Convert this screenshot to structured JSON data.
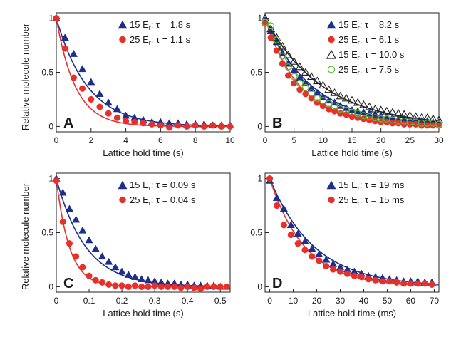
{
  "figure": {
    "ylabel": "Relative molecule number"
  },
  "colors": {
    "blue": "#1c2f8c",
    "red": "#e8302a",
    "green": "#67b534",
    "black": "#222222"
  },
  "chart_data": [
    {
      "type": "scatter",
      "panel_label": "A",
      "xlabel": "Lattice hold time (s)",
      "xlim": [
        0,
        10
      ],
      "ylim": [
        -0.05,
        1.05
      ],
      "xticks": [
        0,
        2,
        4,
        6,
        8,
        10
      ],
      "xtick_labels": [
        "0",
        "2",
        "4",
        "6",
        "8",
        "10"
      ],
      "yticks": [
        0,
        0.5,
        1
      ],
      "ytick_labels": [
        "0",
        "0.5",
        "1"
      ],
      "legend_position": "top-right",
      "series": [
        {
          "name": "15 E_r: τ = 1.8 s",
          "label_prefix": "15 E",
          "label_sub": "r",
          "label_suffix": ": τ = 1.8 s",
          "marker": "triangle",
          "filled": true,
          "color": "#1c2f8c",
          "x": [
            0,
            0.5,
            1,
            1.5,
            2,
            2.5,
            3,
            3.5,
            4,
            4.5,
            5,
            5.5,
            6,
            6.5,
            7,
            7.5,
            8,
            8.5,
            9,
            9.5,
            10
          ],
          "y": [
            1.0,
            0.82,
            0.67,
            0.53,
            0.41,
            0.3,
            0.22,
            0.16,
            0.1,
            0.08,
            0.06,
            0.04,
            0.04,
            0.03,
            0.03,
            0.02,
            0.02,
            0.02,
            0.01,
            0.01,
            0.01
          ],
          "fit_tau": 1.8
        },
        {
          "name": "25 E_r: τ = 1.1 s",
          "label_prefix": "25 E",
          "label_sub": "r",
          "label_suffix": ": τ = 1.1 s",
          "marker": "circle",
          "filled": true,
          "color": "#e8302a",
          "x": [
            0,
            0.5,
            1,
            1.5,
            2,
            2.5,
            3,
            3.5,
            4,
            4.5,
            5,
            5.5,
            6,
            6.5,
            7,
            7.5,
            8,
            8.5,
            9,
            9.5,
            10
          ],
          "y": [
            1.0,
            0.72,
            0.45,
            0.35,
            0.25,
            0.18,
            0.12,
            0.08,
            0.05,
            0.04,
            0.03,
            0.02,
            0.01,
            -0.01,
            0.01,
            0.0,
            0.01,
            0.0,
            0.01,
            0.0,
            0.0
          ],
          "fit_tau": 1.1
        }
      ]
    },
    {
      "type": "scatter",
      "panel_label": "B",
      "xlabel": "Lattice hold time (s)",
      "xlim": [
        0,
        30
      ],
      "ylim": [
        -0.05,
        1.05
      ],
      "xticks": [
        0,
        5,
        10,
        15,
        20,
        25,
        30
      ],
      "xtick_labels": [
        "0",
        "5",
        "10",
        "15",
        "20",
        "25",
        "30"
      ],
      "yticks": [
        0,
        0.5,
        1
      ],
      "ytick_labels": [
        "0",
        "0.5",
        "1"
      ],
      "legend_position": "top-right",
      "series": [
        {
          "name": "15 E_r: τ = 8.2 s",
          "label_prefix": "15 E",
          "label_sub": "r",
          "label_suffix": ": τ = 8.2 s",
          "marker": "triangle",
          "filled": true,
          "color": "#1c2f8c",
          "x": [
            0,
            1,
            2,
            3,
            4,
            5,
            6,
            7,
            8,
            9,
            10,
            11,
            12,
            13,
            14,
            15,
            16,
            17,
            18,
            19,
            20,
            21,
            22,
            23,
            24,
            25,
            26,
            27,
            28,
            29,
            30
          ],
          "y": [
            0.98,
            0.88,
            0.78,
            0.68,
            0.58,
            0.52,
            0.45,
            0.4,
            0.35,
            0.31,
            0.27,
            0.24,
            0.22,
            0.19,
            0.17,
            0.15,
            0.14,
            0.13,
            0.12,
            0.11,
            0.1,
            0.09,
            0.08,
            0.07,
            0.07,
            0.06,
            0.06,
            0.05,
            0.05,
            0.04,
            0.04
          ],
          "fit_tau": 8.2
        },
        {
          "name": "25 E_r: τ = 6.1 s",
          "label_prefix": "25 E",
          "label_sub": "r",
          "label_suffix": ": τ = 6.1 s",
          "marker": "circle",
          "filled": true,
          "color": "#e8302a",
          "x": [
            0,
            1,
            2,
            3,
            4,
            5,
            6,
            7,
            8,
            9,
            10,
            11,
            12,
            13,
            14,
            15,
            16,
            17,
            18,
            19,
            20,
            21,
            22,
            23,
            24,
            25,
            26,
            27,
            28,
            29,
            30
          ],
          "y": [
            0.95,
            0.82,
            0.7,
            0.58,
            0.47,
            0.4,
            0.34,
            0.3,
            0.26,
            0.22,
            0.19,
            0.16,
            0.14,
            0.12,
            0.11,
            0.09,
            0.08,
            0.07,
            0.06,
            0.05,
            0.04,
            0.04,
            0.03,
            0.03,
            0.02,
            0.02,
            0.02,
            0.01,
            0.01,
            0.01,
            0.01
          ],
          "fit_tau": 6.1
        },
        {
          "name": "15 E_r: τ = 10.0 s",
          "label_prefix": "15 E",
          "label_sub": "r",
          "label_suffix": ": τ = 10.0 s",
          "marker": "triangle",
          "filled": false,
          "color": "#222222",
          "x": [
            0,
            1,
            2,
            3,
            4,
            5,
            6,
            7,
            8,
            9,
            10,
            11,
            12,
            13,
            14,
            15,
            16,
            17,
            18,
            19,
            20,
            21,
            22,
            23,
            24,
            25,
            26,
            27,
            28,
            29,
            30
          ],
          "y": [
            1.0,
            0.9,
            0.82,
            0.74,
            0.66,
            0.6,
            0.55,
            0.5,
            0.46,
            0.42,
            0.38,
            0.34,
            0.31,
            0.28,
            0.26,
            0.24,
            0.22,
            0.2,
            0.18,
            0.16,
            0.15,
            0.14,
            0.13,
            0.12,
            0.11,
            0.1,
            0.09,
            0.08,
            0.08,
            0.07,
            0.06
          ],
          "fit_tau": 10.0
        },
        {
          "name": "25 E_r: τ = 7.5 s",
          "label_prefix": "25 E",
          "label_sub": "r",
          "label_suffix": ": τ = 7.5 s",
          "marker": "circle",
          "filled": false,
          "color": "#67b534",
          "x": [
            0,
            1,
            2,
            3,
            4,
            5,
            6,
            7,
            8,
            9,
            10,
            11,
            12,
            13,
            14,
            15,
            16,
            17,
            18,
            19,
            20,
            21,
            22,
            23,
            24,
            25,
            26,
            27,
            28,
            29,
            30
          ],
          "y": [
            0.96,
            0.93,
            0.8,
            0.65,
            0.55,
            0.46,
            0.4,
            0.36,
            0.31,
            0.26,
            0.24,
            0.21,
            0.19,
            0.16,
            0.15,
            0.13,
            0.12,
            0.1,
            0.09,
            0.08,
            0.07,
            0.07,
            0.06,
            0.05,
            0.05,
            0.04,
            0.04,
            0.03,
            0.03,
            0.03,
            0.02
          ],
          "fit_tau": 7.5
        }
      ]
    },
    {
      "type": "scatter",
      "panel_label": "C",
      "xlabel": "Lattice hold time (s)",
      "xlim": [
        0,
        0.53
      ],
      "ylim": [
        -0.05,
        1.05
      ],
      "xticks": [
        0,
        0.1,
        0.2,
        0.3,
        0.4,
        0.5
      ],
      "xtick_labels": [
        "0",
        "0.1",
        "0.2",
        "0.3",
        "0.4",
        "0.5"
      ],
      "yticks": [
        0,
        0.5,
        1
      ],
      "ytick_labels": [
        "0",
        "0.5",
        "1"
      ],
      "legend_position": "top-right",
      "series": [
        {
          "name": "15 E_r: τ = 0.09 s",
          "label_prefix": "15 E",
          "label_sub": "r",
          "label_suffix": ": τ = 0.09 s",
          "marker": "triangle",
          "filled": true,
          "color": "#1c2f8c",
          "x": [
            0,
            0.02,
            0.04,
            0.06,
            0.08,
            0.1,
            0.12,
            0.14,
            0.16,
            0.18,
            0.2,
            0.22,
            0.24,
            0.26,
            0.28,
            0.3,
            0.32,
            0.34,
            0.36,
            0.38,
            0.4,
            0.42,
            0.44,
            0.46,
            0.48,
            0.5,
            0.52
          ],
          "y": [
            1.0,
            0.87,
            0.72,
            0.62,
            0.52,
            0.43,
            0.35,
            0.28,
            0.23,
            0.18,
            0.14,
            0.11,
            0.09,
            0.07,
            0.06,
            0.05,
            0.04,
            0.03,
            0.03,
            0.02,
            0.02,
            0.01,
            0.01,
            0.01,
            0.01,
            0.0,
            0.0
          ],
          "fit_tau": 0.09
        },
        {
          "name": "25 E_r: τ = 0.04 s",
          "label_prefix": "25 E",
          "label_sub": "r",
          "label_suffix": ": τ = 0.04 s",
          "marker": "circle",
          "filled": true,
          "color": "#e8302a",
          "x": [
            0,
            0.02,
            0.04,
            0.06,
            0.08,
            0.1,
            0.12,
            0.14,
            0.16,
            0.18,
            0.2,
            0.22,
            0.24,
            0.26,
            0.28,
            0.3,
            0.32,
            0.34,
            0.36,
            0.38,
            0.4,
            0.42,
            0.44,
            0.46,
            0.48,
            0.5,
            0.52
          ],
          "y": [
            0.98,
            0.6,
            0.4,
            0.28,
            0.18,
            0.1,
            0.06,
            0.04,
            0.02,
            0.01,
            0.01,
            0.0,
            0.01,
            0.0,
            0.0,
            0.01,
            0.0,
            0.0,
            0.0,
            -0.01,
            0.0,
            -0.01,
            -0.02,
            0.0,
            0.0,
            0.0,
            0.0
          ],
          "fit_tau": 0.04
        }
      ]
    },
    {
      "type": "scatter",
      "panel_label": "D",
      "xlabel": "Lattice hold time (ms)",
      "xlim": [
        -2,
        72
      ],
      "ylim": [
        -0.05,
        1.05
      ],
      "xticks": [
        0,
        10,
        20,
        30,
        40,
        50,
        60,
        70
      ],
      "xtick_labels": [
        "0",
        "10",
        "20",
        "30",
        "40",
        "50",
        "60",
        "70"
      ],
      "yticks": [
        0,
        0.5,
        1
      ],
      "ytick_labels": [
        "0",
        "0.5",
        "1"
      ],
      "legend_position": "top-right",
      "series": [
        {
          "name": "15 E_r: τ = 19 ms",
          "label_prefix": "15 E",
          "label_sub": "r",
          "label_suffix": ": τ = 19 ms",
          "marker": "triangle",
          "filled": true,
          "color": "#1c2f8c",
          "x": [
            0,
            3,
            6,
            9,
            12,
            15,
            18,
            21,
            24,
            27,
            30,
            33,
            36,
            39,
            42,
            45,
            48,
            51,
            54,
            57,
            60,
            63,
            66,
            69
          ],
          "y": [
            0.98,
            0.82,
            0.72,
            0.57,
            0.49,
            0.42,
            0.35,
            0.3,
            0.25,
            0.21,
            0.18,
            0.16,
            0.14,
            0.12,
            0.1,
            0.09,
            0.08,
            0.07,
            0.06,
            0.05,
            0.05,
            0.05,
            0.04,
            0.04
          ],
          "fit_tau": 19
        },
        {
          "name": "25 E_r: τ = 15 ms",
          "label_prefix": "25 E",
          "label_sub": "r",
          "label_suffix": ": τ = 15 ms",
          "marker": "circle",
          "filled": true,
          "color": "#e8302a",
          "x": [
            0,
            3,
            6,
            9,
            12,
            15,
            18,
            21,
            24,
            27,
            30,
            33,
            36,
            39,
            42,
            45,
            48,
            51,
            54,
            57,
            60,
            63,
            66,
            69
          ],
          "y": [
            1.0,
            0.75,
            0.57,
            0.48,
            0.4,
            0.34,
            0.28,
            0.24,
            0.19,
            0.16,
            0.14,
            0.12,
            0.1,
            0.09,
            0.07,
            0.06,
            0.05,
            0.05,
            0.04,
            0.03,
            0.03,
            0.03,
            0.03,
            0.02
          ],
          "fit_tau": 15
        }
      ]
    }
  ]
}
